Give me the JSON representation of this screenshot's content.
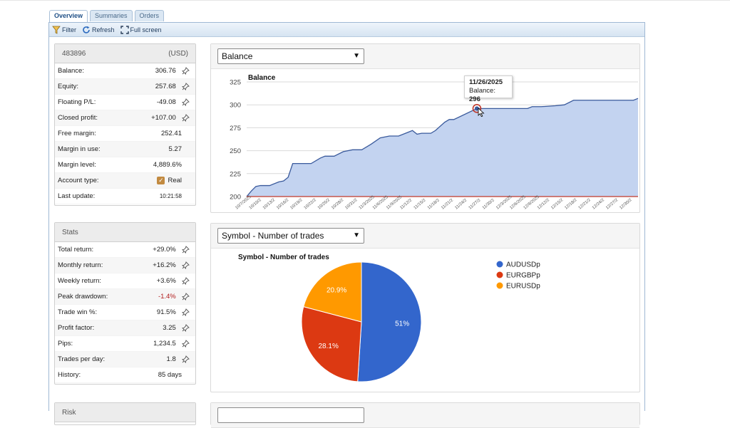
{
  "tabs": [
    {
      "label": "Overview",
      "active": true
    },
    {
      "label": "Summaries",
      "active": false
    },
    {
      "label": "Orders",
      "active": false
    }
  ],
  "toolbar": {
    "filter": "Filter",
    "refresh": "Refresh",
    "fullscreen": "Full screen"
  },
  "account": {
    "number": "483896",
    "currency": "(USD)",
    "rows": [
      {
        "label": "Balance:",
        "value": "306.76"
      },
      {
        "label": "Equity:",
        "value": "257.68"
      },
      {
        "label": "Floating P/L:",
        "value": "-49.08"
      },
      {
        "label": "Closed profit:",
        "value": "+107.00"
      },
      {
        "label": "Free margin:",
        "value": "252.41"
      },
      {
        "label": "Margin in use:",
        "value": "5.27"
      },
      {
        "label": "Margin level:",
        "value": "4,889.6%"
      },
      {
        "label": "Account type:",
        "value": "Real"
      },
      {
        "label": "Last update:",
        "value": "10:21:58"
      }
    ]
  },
  "stats": {
    "title": "Stats",
    "rows": [
      {
        "label": "Total return:",
        "value": "+29.0%"
      },
      {
        "label": "Monthly return:",
        "value": "+16.2%"
      },
      {
        "label": "Weekly return:",
        "value": "+3.6%"
      },
      {
        "label": "Peak drawdown:",
        "value": "-1.4%"
      },
      {
        "label": "Trade win %:",
        "value": "91.5%"
      },
      {
        "label": "Profit factor:",
        "value": "3.25"
      },
      {
        "label": "Pips:",
        "value": "1,234.5"
      },
      {
        "label": "Trades per day:",
        "value": "1.8"
      },
      {
        "label": "History:",
        "value": "85 days"
      }
    ]
  },
  "third_panel": {
    "title": "Risk"
  },
  "balance_chart": {
    "select_value": "Balance",
    "tooltip": {
      "date": "11/26/2025",
      "label": "Balance:",
      "value": "296"
    }
  },
  "pie_chart": {
    "select_value": "Symbol - Number of trades"
  },
  "colors": {
    "area_fill": "#c3d3f0",
    "line": "#3a5a9c",
    "baseline": "#c0392b",
    "audusd": "#3366cc",
    "eurgbp": "#dc3912",
    "eurusd": "#ff9900"
  },
  "chart_data": [
    {
      "type": "area",
      "title": "Balance",
      "ylim": [
        200,
        330
      ],
      "yticks": [
        200,
        225,
        250,
        275,
        300,
        325
      ],
      "xticks": [
        "10/7/2025",
        "10/10/2",
        "10/13/2",
        "10/16/2",
        "10/19/2",
        "10/22/2",
        "10/25/2",
        "10/28/2",
        "10/31/2",
        "11/3/2025",
        "11/6/2025",
        "11/9/2025",
        "11/12/2",
        "11/15/2",
        "11/18/2",
        "11/21/2",
        "11/24/2",
        "11/27/2",
        "11/30/2",
        "12/3/2025",
        "12/6/2025",
        "12/9/2025",
        "12/12/2",
        "12/15/2",
        "12/18/2",
        "12/21/2",
        "12/24/2",
        "12/27/2",
        "12/30/2"
      ],
      "x": [
        "10/7/2025",
        "10/8/2025",
        "10/9/2025",
        "10/10/2025",
        "10/12/2025",
        "10/14/2025",
        "10/15/2025",
        "10/16/2025",
        "10/17/2025",
        "10/18/2025",
        "10/21/2025",
        "10/23/2025",
        "10/24/2025",
        "10/26/2025",
        "10/28/2025",
        "10/30/2025",
        "11/1/2025",
        "11/3/2025",
        "11/5/2025",
        "11/7/2025",
        "11/9/2025",
        "11/11/2025",
        "11/12/2025",
        "11/13/2025",
        "11/14/2025",
        "11/16/2025",
        "11/17/2025",
        "11/19/2025",
        "11/20/2025",
        "11/21/2025",
        "11/26/2025",
        "11/27/2025",
        "12/7/2025",
        "12/8/2025",
        "12/10/2025",
        "12/13/2025",
        "12/15/2025",
        "12/17/2025",
        "12/30/2025",
        "12/31/2025"
      ],
      "y": [
        200,
        206,
        211,
        212,
        212,
        216,
        217,
        221,
        236,
        236,
        236,
        242,
        244,
        244,
        249,
        251,
        251,
        257,
        264,
        266,
        266,
        270,
        272,
        268,
        269,
        269,
        272,
        281,
        284,
        284,
        296,
        296,
        296,
        298,
        298,
        299,
        300,
        305,
        305,
        307
      ]
    },
    {
      "type": "pie",
      "title": "Symbol - Number of trades",
      "categories": [
        "AUDUSDp",
        "EURGBPp",
        "EURUSDp"
      ],
      "values": [
        51,
        28.1,
        20.9
      ],
      "labels": [
        "51%",
        "28.1%",
        "20.9%"
      ],
      "legend": "right"
    }
  ]
}
